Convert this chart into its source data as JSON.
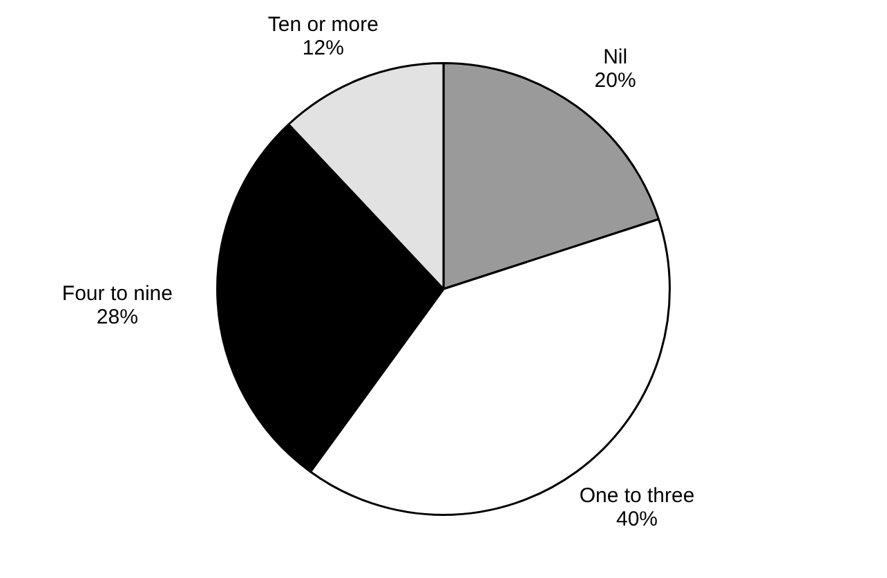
{
  "chart_data": {
    "type": "pie",
    "categories": [
      "Nil",
      "One to three",
      "Four to nine",
      "Ten or more"
    ],
    "values": [
      20,
      40,
      28,
      12
    ],
    "colors": [
      "#9a9a9a",
      "#ffffff",
      "#000000",
      "#e2e2e2"
    ],
    "value_labels": [
      "20%",
      "40%",
      "28%",
      "12%"
    ],
    "legend": false
  }
}
